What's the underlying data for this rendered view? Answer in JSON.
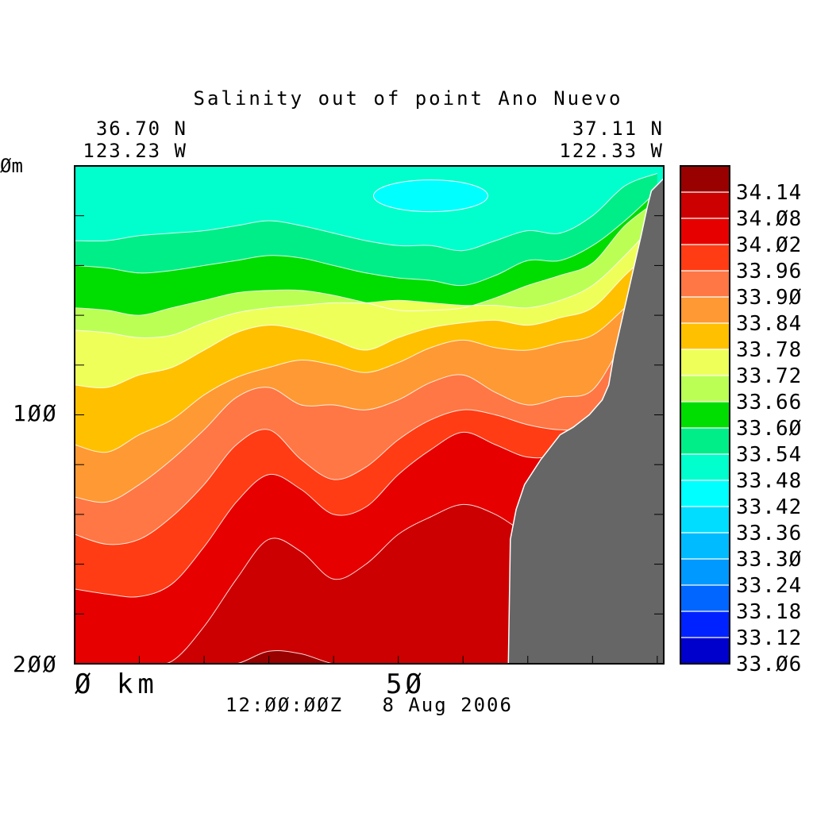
{
  "chart_data": {
    "type": "heatmap",
    "title": "Salinity out of point Ano Nuevo",
    "endpoints": {
      "left": {
        "lat": "36.70 N",
        "lon": "123.23 W"
      },
      "right": {
        "lat": "37.11 N",
        "lon": "122.33 W"
      }
    },
    "xaxis": {
      "range_km": [
        0,
        91
      ],
      "ticks": [
        "Ø km",
        "5Ø"
      ],
      "tick_values": [
        0,
        50
      ]
    },
    "yaxis": {
      "range_m": [
        0,
        200
      ],
      "inverted": true,
      "ticks": [
        "Øm",
        "1ØØ",
        "2ØØ"
      ],
      "tick_values": [
        0,
        100,
        200
      ]
    },
    "time_label": "12:ØØ:ØØZ   8 Aug 2006",
    "levels": [
      33.03,
      33.06,
      33.09,
      33.12,
      33.15,
      33.18,
      33.21,
      33.24,
      33.27,
      33.3,
      33.33,
      33.36,
      33.39,
      33.42,
      33.45,
      33.48,
      33.51,
      33.54,
      33.57,
      33.6,
      33.63,
      33.66,
      33.69,
      33.72,
      33.75,
      33.78,
      33.81,
      33.84,
      33.87,
      33.9,
      33.93,
      33.96,
      33.99,
      34.02,
      34.05,
      34.08,
      34.11,
      34.14,
      34.17
    ],
    "colorbar": {
      "labels": [
        "34.14",
        "34.Ø8",
        "34.Ø2",
        "33.96",
        "33.9Ø",
        "33.84",
        "33.78",
        "33.72",
        "33.66",
        "33.6Ø",
        "33.54",
        "33.48",
        "33.42",
        "33.36",
        "33.3Ø",
        "33.24",
        "33.18",
        "33.12",
        "33.Ø6"
      ],
      "colors_top_to_bottom": [
        "#990000",
        "#cc0000",
        "#e60000",
        "#ff3c14",
        "#ff7744",
        "#ff9933",
        "#ffc000",
        "#eeff5a",
        "#bbff55",
        "#00dd00",
        "#00ee88",
        "#00ffcc",
        "#00ffff",
        "#00ddff",
        "#00bbff",
        "#0099ff",
        "#0066ff",
        "#0022ff",
        "#0000cc"
      ]
    },
    "bands": [
      {
        "range": [
          33.45,
          33.51
        ],
        "color": "#00ffcc"
      },
      {
        "range": [
          33.51,
          33.57
        ],
        "color": "#00ee88"
      },
      {
        "range": [
          33.57,
          33.63
        ],
        "color": "#00dd00"
      },
      {
        "range": [
          33.63,
          33.69
        ],
        "color": "#bbff55"
      },
      {
        "range": [
          33.69,
          33.75
        ],
        "color": "#eeff5a"
      },
      {
        "range": [
          33.75,
          33.81
        ],
        "color": "#ffc000"
      },
      {
        "range": [
          33.81,
          33.87
        ],
        "color": "#ff9933"
      },
      {
        "range": [
          33.87,
          33.93
        ],
        "color": "#ff7744"
      },
      {
        "range": [
          33.93,
          33.99
        ],
        "color": "#ff3c14"
      },
      {
        "range": [
          33.99,
          34.05
        ],
        "color": "#e60000"
      },
      {
        "range": [
          34.05,
          34.11
        ],
        "color": "#cc0000"
      },
      {
        "range": [
          34.11,
          34.17
        ],
        "color": "#990000"
      }
    ],
    "inset_bands": [
      {
        "range": [
          33.39,
          33.45
        ],
        "color": "#00ffff",
        "near_x_km": 55,
        "near_depth_m": 12
      }
    ],
    "isohaline_depths": {
      "x_km": [
        0,
        5,
        10,
        15,
        20,
        25,
        30,
        35,
        40,
        45,
        50,
        55,
        60,
        65,
        70,
        75,
        80,
        85,
        90
      ],
      "s33_51": [
        30,
        30,
        28,
        27,
        26,
        24,
        22,
        24,
        27,
        30,
        32,
        32,
        34,
        30,
        26,
        27,
        20,
        8,
        3
      ],
      "s33_57": [
        40,
        41,
        43,
        42,
        40,
        38,
        36,
        37,
        40,
        43,
        45,
        46,
        48,
        44,
        38,
        38,
        32,
        22,
        10
      ],
      "s33_63": [
        57,
        58,
        60,
        57,
        54,
        51,
        50,
        50,
        52,
        55,
        58,
        58,
        57,
        53,
        48,
        44,
        39,
        24,
        14
      ],
      "s33_69": [
        66,
        67,
        69,
        68,
        63,
        59,
        57,
        56,
        55,
        55,
        54,
        55,
        56,
        56,
        57,
        54,
        48,
        36,
        22
      ],
      "s33_75": [
        88,
        89,
        84,
        81,
        74,
        67,
        64,
        66,
        70,
        74,
        69,
        65,
        63,
        62,
        64,
        61,
        57,
        44,
        32
      ],
      "s33_81": [
        112,
        115,
        108,
        102,
        92,
        85,
        81,
        78,
        80,
        83,
        79,
        73,
        70,
        73,
        74,
        71,
        68,
        57,
        44
      ],
      "s33_87": [
        133,
        135,
        128,
        118,
        106,
        93,
        89,
        96,
        96,
        98,
        94,
        87,
        84,
        91,
        96,
        93,
        90,
        70,
        55
      ],
      "s33_93": [
        148,
        152,
        150,
        141,
        128,
        112,
        106,
        118,
        126,
        121,
        110,
        102,
        98,
        100,
        104,
        106,
        105,
        95,
        70
      ],
      "s33_99": [
        170,
        172,
        173,
        168,
        153,
        135,
        124,
        130,
        140,
        137,
        124,
        114,
        107,
        112,
        117,
        116,
        110,
        100,
        75
      ],
      "s34_05": [
        200,
        200,
        200,
        199,
        185,
        166,
        150,
        155,
        166,
        160,
        148,
        141,
        136,
        140,
        148,
        152,
        155,
        130,
        100
      ],
      "s34_11": [
        200,
        200,
        200,
        200,
        200,
        200,
        195,
        196,
        200,
        200,
        200,
        200,
        200,
        200,
        200,
        200,
        200,
        200,
        200
      ],
      "s34_17": [
        200,
        200,
        200,
        200,
        200,
        200,
        200,
        200,
        200,
        200,
        200,
        200,
        200,
        200,
        200,
        200,
        200,
        200,
        200
      ]
    },
    "bathymetry": {
      "x_km": [
        67.0,
        67.3,
        68.2,
        69.5,
        72.0,
        75.0,
        77.0,
        79.5,
        81.5,
        82.5,
        83.3,
        84.7,
        86.1,
        87.5,
        88.5,
        89.1,
        91.0
      ],
      "depth_m": [
        200,
        150,
        138,
        128,
        118,
        108,
        105,
        100,
        94,
        88,
        76,
        60,
        44,
        28,
        16,
        10,
        5
      ]
    }
  }
}
